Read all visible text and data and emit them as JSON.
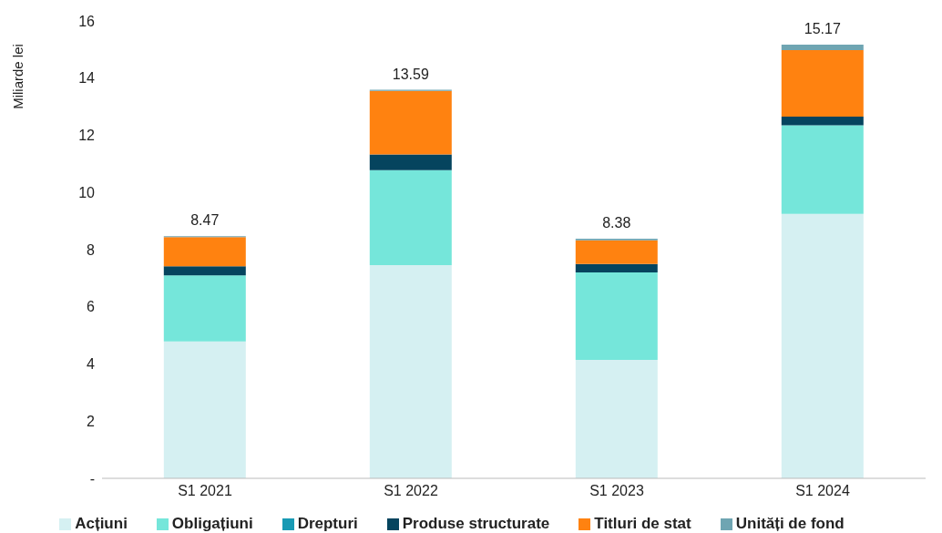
{
  "chart_data": {
    "type": "bar",
    "stacked": true,
    "ylabel": "Miliarde lei",
    "categories": [
      "S1 2021",
      "S1 2022",
      "S1 2023",
      "S1 2024"
    ],
    "series": [
      {
        "name": "Acțiuni",
        "color": "#d5f0f2",
        "values": [
          4.79,
          7.46,
          4.14,
          9.25
        ]
      },
      {
        "name": "Obligațiuni",
        "color": "#75e6da",
        "values": [
          2.31,
          3.32,
          3.06,
          3.1
        ]
      },
      {
        "name": "Drepturi",
        "color": "#189ab4",
        "values": [
          0,
          0,
          0,
          0
        ]
      },
      {
        "name": "Produse structurate",
        "color": "#05445e",
        "values": [
          0.32,
          0.55,
          0.3,
          0.3
        ]
      },
      {
        "name": "Titluri de stat",
        "color": "#ff8210",
        "values": [
          1.02,
          2.22,
          0.83,
          2.33
        ]
      },
      {
        "name": "Unități de fond",
        "color": "#6fa5b2",
        "values": [
          0.03,
          0.04,
          0.05,
          0.19
        ]
      }
    ],
    "totals": [
      "8.47",
      "13.59",
      "8.38",
      "15.17"
    ],
    "ylim": [
      0,
      16
    ],
    "yticks": [
      {
        "value": 0,
        "label": "-"
      },
      2,
      4,
      6,
      8,
      10,
      12,
      14,
      16
    ],
    "grid": false,
    "legend": "bottom"
  }
}
